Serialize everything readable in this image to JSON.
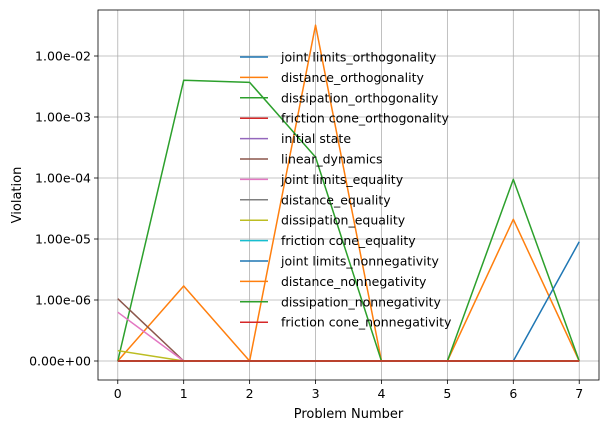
{
  "chart_data": {
    "type": "line",
    "title": "",
    "xlabel": "Problem Number",
    "ylabel": "Violation",
    "x": [
      0,
      1,
      2,
      3,
      4,
      5,
      6,
      7
    ],
    "xticks": [
      "0",
      "1",
      "2",
      "3",
      "4",
      "5",
      "6",
      "7"
    ],
    "yscale": "symlog",
    "yticks": [
      {
        "value": 0,
        "label": "0.00e+00"
      },
      {
        "value": 1e-06,
        "label": "1.00e-06"
      },
      {
        "value": 1e-05,
        "label": "1.00e-05"
      },
      {
        "value": 0.0001,
        "label": "1.00e-04"
      },
      {
        "value": 0.001,
        "label": "1.00e-03"
      },
      {
        "value": 0.01,
        "label": "1.00e-02"
      }
    ],
    "grid": true,
    "legend_position": "upper-center",
    "series": [
      {
        "name": "joint limits_orthogonality",
        "color": "#1f77b4",
        "values": [
          0,
          0,
          0,
          0,
          0,
          0,
          0,
          0
        ]
      },
      {
        "name": "distance_orthogonality",
        "color": "#ff7f0e",
        "values": [
          0,
          1.7e-06,
          0,
          0.032,
          0,
          0,
          2.1e-05,
          0
        ]
      },
      {
        "name": "dissipation_orthogonality",
        "color": "#2ca02c",
        "values": [
          0,
          0.004,
          0.0037,
          0.00022,
          0,
          0,
          9.5e-05,
          0
        ]
      },
      {
        "name": "friction cone_orthogonality",
        "color": "#d62728",
        "values": [
          0,
          0,
          0,
          0,
          0,
          0,
          0,
          0
        ]
      },
      {
        "name": "initial state",
        "color": "#9467bd",
        "values": [
          0,
          0,
          0,
          0,
          0,
          0,
          0,
          0
        ]
      },
      {
        "name": "linear_dynamics",
        "color": "#8c564b",
        "values": [
          1.05e-06,
          0,
          0,
          0,
          0,
          0,
          0,
          0
        ]
      },
      {
        "name": "joint limits_equality",
        "color": "#e377c2",
        "values": [
          8e-07,
          0,
          0,
          0,
          0,
          0,
          0,
          0
        ]
      },
      {
        "name": "distance_equality",
        "color": "#7f7f7f",
        "values": [
          0,
          0,
          0,
          0,
          0,
          0,
          0,
          0
        ]
      },
      {
        "name": "dissipation_equality",
        "color": "#bcbd22",
        "values": [
          1.7e-07,
          0,
          0,
          0,
          0,
          0,
          0,
          0
        ]
      },
      {
        "name": "friction cone_equality",
        "color": "#17becf",
        "values": [
          0,
          0,
          0,
          0,
          0,
          0,
          0,
          0
        ]
      },
      {
        "name": "joint limits_nonnegativity",
        "color": "#1f77b4",
        "values": [
          0,
          0,
          0,
          0,
          0,
          0,
          0,
          9e-06
        ]
      },
      {
        "name": "distance_nonnegativity",
        "color": "#ff7f0e",
        "values": [
          0,
          0,
          0,
          0,
          0,
          0,
          0,
          0
        ]
      },
      {
        "name": "dissipation_nonnegativity",
        "color": "#2ca02c",
        "values": [
          0,
          0,
          0,
          0,
          0,
          0,
          0,
          0
        ]
      },
      {
        "name": "friction cone_nonnegativity",
        "color": "#d62728",
        "values": [
          0,
          0,
          0,
          0,
          0,
          0,
          0,
          0
        ]
      }
    ]
  }
}
